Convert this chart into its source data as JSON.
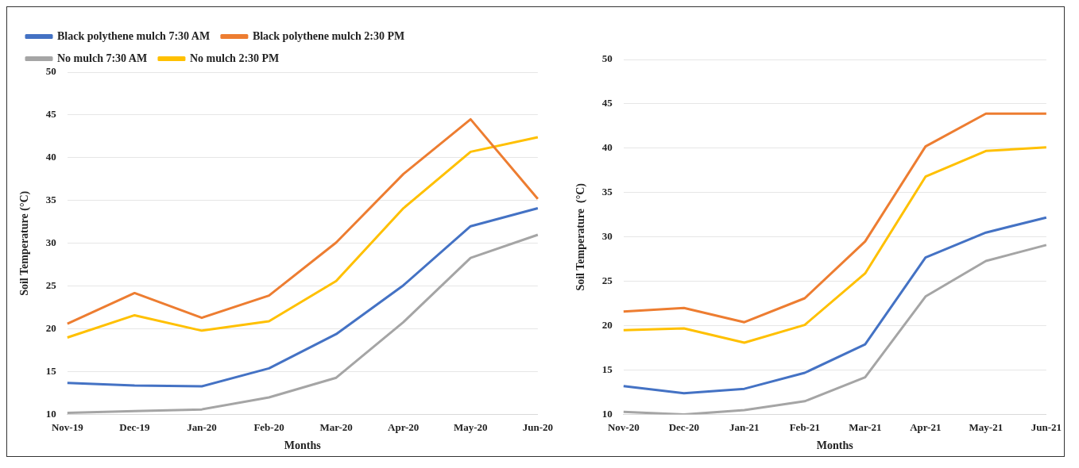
{
  "chart_data": [
    {
      "type": "line",
      "xlabel": "Months",
      "ylabel": "Soil Temperature (°C)",
      "categories": [
        "Nov-19",
        "Dec-19",
        "Jan-20",
        "Feb-20",
        "Mar-20",
        "Apr-20",
        "May-20",
        "Jun-20"
      ],
      "ylim": [
        10,
        50
      ],
      "yticks": [
        10,
        15,
        20,
        25,
        30,
        35,
        40,
        45,
        50
      ],
      "grid": "y",
      "legend": "top left",
      "series": [
        {
          "name": "Black polythene mulch 7:30 AM",
          "color": "#4472c4",
          "values": [
            13.7,
            13.4,
            13.3,
            15.4,
            19.4,
            25.1,
            32.0,
            34.1
          ]
        },
        {
          "name": "Black polythene mulch 2:30 PM",
          "color": "#ed7d31",
          "values": [
            20.6,
            24.2,
            21.3,
            23.9,
            30.1,
            38.1,
            44.5,
            35.2
          ]
        },
        {
          "name": "No mulch 7:30 AM",
          "color": "#a5a5a5",
          "values": [
            10.2,
            10.4,
            10.6,
            12.0,
            14.3,
            20.8,
            28.3,
            31.0
          ]
        },
        {
          "name": "No mulch 2:30 PM",
          "color": "#ffc000",
          "values": [
            19.0,
            21.6,
            19.8,
            20.9,
            25.6,
            34.1,
            40.7,
            42.4
          ]
        }
      ]
    },
    {
      "type": "line",
      "xlabel": "Months",
      "ylabel": "Soil Temperature  (°C)",
      "categories": [
        "Nov-20",
        "Dec-20",
        "Jan-21",
        "Feb-21",
        "Mar-21",
        "Apr-21",
        "May-21",
        "Jun-21"
      ],
      "ylim": [
        10,
        50
      ],
      "yticks": [
        10,
        15,
        20,
        25,
        30,
        35,
        40,
        45,
        50
      ],
      "grid": "y",
      "series": [
        {
          "color": "#4472c4",
          "values": [
            13.2,
            12.4,
            12.9,
            14.7,
            17.9,
            27.7,
            30.5,
            32.2
          ]
        },
        {
          "color": "#ed7d31",
          "values": [
            21.6,
            22.0,
            20.4,
            23.1,
            29.5,
            40.2,
            43.9,
            43.9
          ]
        },
        {
          "color": "#a5a5a5",
          "values": [
            10.3,
            10.0,
            10.5,
            11.5,
            14.2,
            23.3,
            27.3,
            29.1
          ]
        },
        {
          "color": "#ffc000",
          "values": [
            19.5,
            19.7,
            18.1,
            20.1,
            25.9,
            36.8,
            39.7,
            40.1
          ]
        }
      ]
    }
  ]
}
